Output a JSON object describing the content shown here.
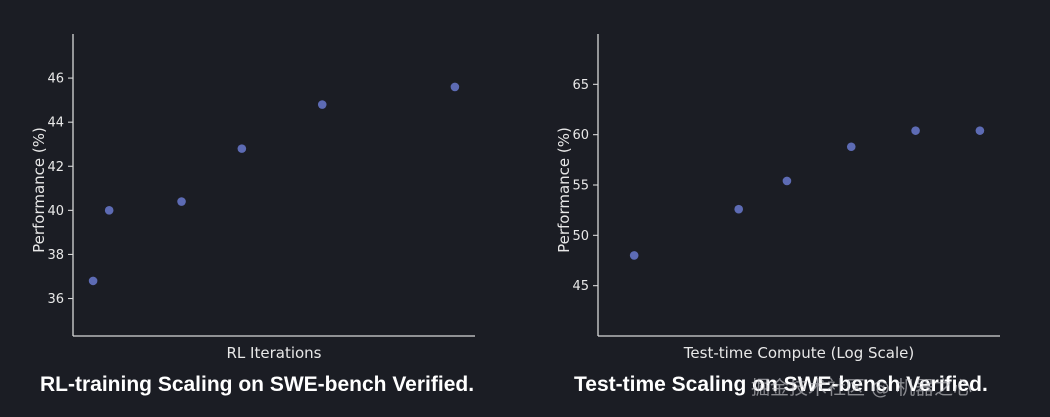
{
  "chart_data": [
    {
      "type": "scatter",
      "title": "RL-training Scaling on SWE-bench Verified.",
      "xlabel": "RL Iterations",
      "ylabel": "Performance (%)",
      "x_ticks_shown": false,
      "y_ticks": [
        36,
        38,
        40,
        42,
        44,
        46
      ],
      "ylim": [
        34.3,
        48.0
      ],
      "xlim": [
        0,
        1
      ],
      "grid": false,
      "points": [
        {
          "x": 0.05,
          "y": 36.8
        },
        {
          "x": 0.09,
          "y": 40.0
        },
        {
          "x": 0.27,
          "y": 40.4
        },
        {
          "x": 0.42,
          "y": 42.8
        },
        {
          "x": 0.62,
          "y": 44.8
        },
        {
          "x": 0.95,
          "y": 45.6
        }
      ],
      "color": "#5d6bb4"
    },
    {
      "type": "scatter",
      "title": "Test-time Scaling on SWE-bench Verified.",
      "xlabel": "Test-time Compute (Log Scale)",
      "ylabel": "Performance (%)",
      "x_ticks_shown": false,
      "y_ticks": [
        45,
        50,
        55,
        60,
        65
      ],
      "ylim": [
        40.0,
        70.0
      ],
      "xlim": [
        0,
        1
      ],
      "grid": false,
      "points": [
        {
          "x": 0.09,
          "y": 48.0
        },
        {
          "x": 0.35,
          "y": 52.6
        },
        {
          "x": 0.47,
          "y": 55.4
        },
        {
          "x": 0.63,
          "y": 58.8
        },
        {
          "x": 0.79,
          "y": 60.4
        },
        {
          "x": 0.95,
          "y": 60.4
        }
      ],
      "color": "#5d6bb4"
    }
  ],
  "captions": {
    "left": "RL-training Scaling on SWE-bench Verified.",
    "right": "Test-time Scaling on SWE-bench Verified."
  },
  "watermark": "掘金技术社区 @ 机器之心"
}
